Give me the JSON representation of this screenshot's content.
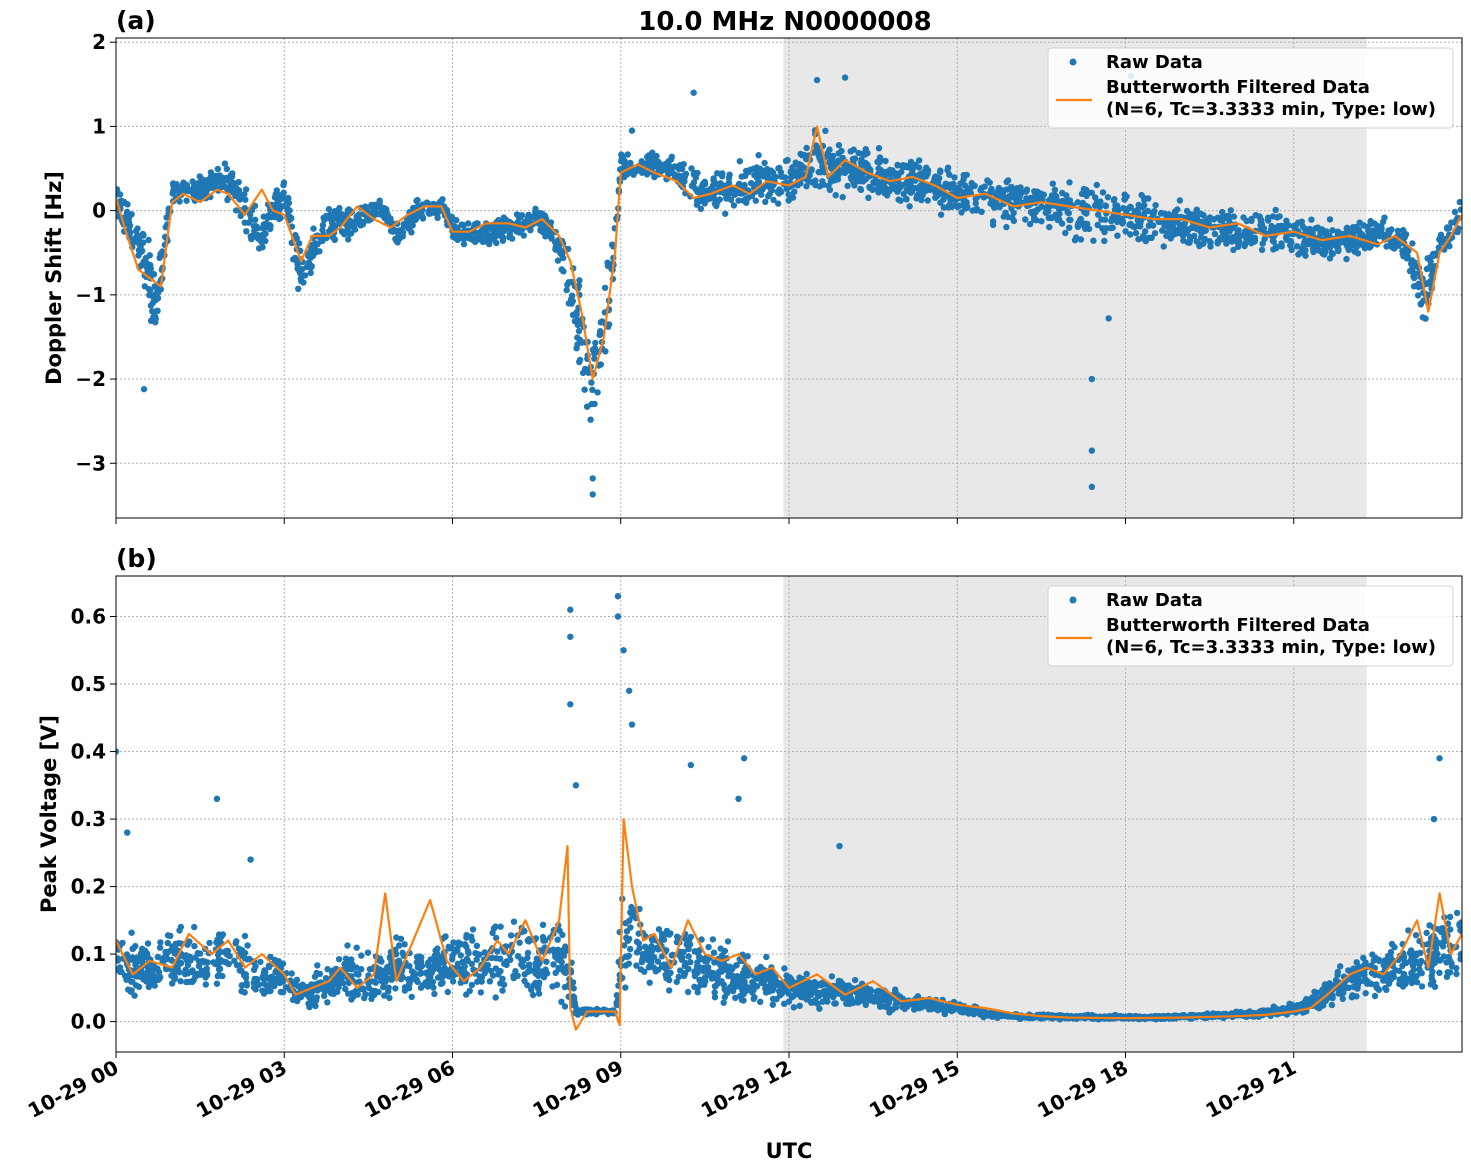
{
  "figure": {
    "title": "10.0 MHz N0000008",
    "xlabel": "UTC"
  },
  "colors": {
    "raw": "#1f77b4",
    "filtered": "#ff7f0e",
    "night_shade": "#e8e8e8",
    "grid": "#b0b0b0"
  },
  "chart_data": [
    {
      "type": "scatter",
      "panel_label": "(a)",
      "ylabel": "Doppler Shift [Hz]",
      "xlim_hours": [
        0,
        24
      ],
      "ylim": [
        -3.65,
        2.05
      ],
      "yticks": [
        -3,
        -2,
        -1,
        0,
        1,
        2
      ],
      "ytick_labels": [
        "−3",
        "−2",
        "−1",
        "0",
        "1",
        "2"
      ],
      "xticks": [
        0,
        3,
        6,
        9,
        12,
        15,
        18,
        21
      ],
      "xtick_labels": [
        "10-29 00",
        "10-29 03",
        "10-29 06",
        "10-29 09",
        "10-29 12",
        "10-29 15",
        "10-29 18",
        "10-29 21"
      ],
      "grid": true,
      "legend_position": "top-right",
      "legend": [
        "Raw Data",
        "Butterworth Filtered Data",
        "(N=6, Tc=3.3333 min, Type: low)"
      ],
      "shaded_interval_hours": [
        11.9,
        22.3
      ],
      "series": [
        {
          "name": "Raw Data",
          "style": "points",
          "x": [
            0,
            0.5,
            0.7,
            1.0,
            1.5,
            2.0,
            2.6,
            3.0,
            3.3,
            3.7,
            4.2,
            4.7,
            5.0,
            5.4,
            5.8,
            6.1,
            6.5,
            7.0,
            7.6,
            8.0,
            8.3,
            8.5,
            8.8,
            9.0,
            9.5,
            10.0,
            10.5,
            11.0,
            11.5,
            12.0,
            12.5,
            13.0,
            13.5,
            14.0,
            14.5,
            15.0,
            15.5,
            16.0,
            16.5,
            17.0,
            17.5,
            18.0,
            18.5,
            19.0,
            19.5,
            20.0,
            20.5,
            21.0,
            21.5,
            22.0,
            22.5,
            23.0,
            23.3,
            23.6,
            24.0
          ],
          "y": [
            0.15,
            -0.5,
            -1.2,
            0.2,
            0.25,
            0.35,
            -0.3,
            0.25,
            -0.8,
            -0.2,
            -0.15,
            0.05,
            -0.3,
            0.0,
            0.05,
            -0.3,
            -0.3,
            -0.2,
            -0.1,
            -0.6,
            -1.6,
            -2.1,
            -1.0,
            0.5,
            0.55,
            0.45,
            0.2,
            0.25,
            0.35,
            0.3,
            0.6,
            0.5,
            0.45,
            0.35,
            0.3,
            0.2,
            0.1,
            0.15,
            0.05,
            0.0,
            -0.05,
            -0.05,
            -0.1,
            -0.15,
            -0.2,
            -0.25,
            -0.2,
            -0.3,
            -0.35,
            -0.35,
            -0.25,
            -0.4,
            -1.1,
            -0.4,
            -0.05
          ],
          "spread": [
            0.25,
            0.5,
            0.6,
            0.25,
            0.25,
            0.3,
            0.35,
            0.3,
            0.45,
            0.3,
            0.25,
            0.15,
            0.2,
            0.2,
            0.15,
            0.2,
            0.2,
            0.2,
            0.2,
            0.4,
            0.8,
            0.9,
            0.6,
            0.25,
            0.2,
            0.25,
            0.3,
            0.35,
            0.4,
            0.35,
            0.45,
            0.4,
            0.4,
            0.4,
            0.35,
            0.35,
            0.35,
            0.4,
            0.4,
            0.45,
            0.45,
            0.4,
            0.4,
            0.35,
            0.35,
            0.3,
            0.3,
            0.3,
            0.3,
            0.3,
            0.3,
            0.3,
            0.45,
            0.3,
            0.3
          ],
          "outliers": [
            [
              17.4,
              -2.0
            ],
            [
              17.4,
              -2.85
            ],
            [
              17.4,
              -3.28
            ],
            [
              17.7,
              -1.28
            ],
            [
              8.5,
              -3.37
            ],
            [
              8.5,
              -3.18
            ],
            [
              0.5,
              -2.12
            ],
            [
              12.5,
              1.55
            ],
            [
              13.0,
              1.58
            ],
            [
              18.1,
              1.6
            ],
            [
              10.3,
              1.4
            ],
            [
              9.2,
              0.95
            ]
          ]
        },
        {
          "name": "Butterworth Filtered Data",
          "style": "line",
          "x": [
            0,
            0.2,
            0.4,
            0.6,
            0.8,
            1.0,
            1.2,
            1.5,
            1.8,
            2.0,
            2.3,
            2.6,
            2.8,
            3.0,
            3.3,
            3.5,
            3.8,
            4.0,
            4.3,
            4.6,
            4.9,
            5.2,
            5.5,
            5.8,
            6.0,
            6.3,
            6.6,
            7.0,
            7.3,
            7.6,
            7.9,
            8.1,
            8.3,
            8.5,
            8.7,
            8.9,
            9.0,
            9.3,
            9.6,
            10.0,
            10.3,
            10.6,
            11.0,
            11.3,
            11.6,
            12.0,
            12.3,
            12.5,
            12.7,
            13.0,
            13.4,
            13.8,
            14.2,
            14.6,
            15.0,
            15.5,
            16.0,
            16.5,
            17.0,
            17.5,
            18.0,
            18.5,
            19.0,
            19.5,
            20.0,
            20.5,
            21.0,
            21.5,
            22.0,
            22.5,
            22.8,
            23.0,
            23.2,
            23.4,
            23.6,
            23.8,
            24.0
          ],
          "y": [
            0.15,
            -0.3,
            -0.7,
            -0.8,
            -0.9,
            0.1,
            0.2,
            0.1,
            0.25,
            0.2,
            -0.05,
            0.25,
            0.0,
            -0.05,
            -0.6,
            -0.3,
            -0.3,
            -0.2,
            0.05,
            -0.1,
            -0.2,
            -0.05,
            0.05,
            0.05,
            -0.25,
            -0.25,
            -0.15,
            -0.15,
            -0.2,
            -0.1,
            -0.3,
            -0.6,
            -1.2,
            -2.0,
            -1.5,
            -0.5,
            0.45,
            0.55,
            0.45,
            0.35,
            0.15,
            0.2,
            0.3,
            0.2,
            0.35,
            0.3,
            0.4,
            1.0,
            0.4,
            0.6,
            0.45,
            0.35,
            0.4,
            0.3,
            0.15,
            0.2,
            0.05,
            0.1,
            0.05,
            0.0,
            -0.05,
            -0.1,
            -0.1,
            -0.2,
            -0.15,
            -0.3,
            -0.25,
            -0.35,
            -0.3,
            -0.4,
            -0.3,
            -0.4,
            -0.5,
            -1.2,
            -0.5,
            -0.3,
            -0.05
          ]
        }
      ]
    },
    {
      "type": "scatter",
      "panel_label": "(b)",
      "ylabel": "Peak Voltage [V]",
      "xlim_hours": [
        0,
        24
      ],
      "ylim": [
        -0.045,
        0.66
      ],
      "yticks": [
        0.0,
        0.1,
        0.2,
        0.3,
        0.4,
        0.5,
        0.6
      ],
      "ytick_labels": [
        "0.0",
        "0.1",
        "0.2",
        "0.3",
        "0.4",
        "0.5",
        "0.6"
      ],
      "xticks": [
        0,
        3,
        6,
        9,
        12,
        15,
        18,
        21
      ],
      "xtick_labels": [
        "10-29 00",
        "10-29 03",
        "10-29 06",
        "10-29 09",
        "10-29 12",
        "10-29 15",
        "10-29 18",
        "10-29 21"
      ],
      "grid": true,
      "legend_position": "top-right",
      "legend": [
        "Raw Data",
        "Butterworth Filtered Data",
        "(N=6, Tc=3.3333 min, Type: low)"
      ],
      "shaded_interval_hours": [
        11.9,
        22.3
      ],
      "series": [
        {
          "name": "Raw Data",
          "style": "points",
          "x": [
            0,
            0.5,
            1.0,
            1.5,
            2.0,
            2.5,
            3.0,
            3.3,
            3.7,
            4.0,
            4.5,
            5.0,
            5.5,
            6.0,
            6.5,
            7.0,
            7.5,
            7.9,
            8.1,
            8.2,
            8.5,
            8.9,
            9.0,
            9.2,
            9.5,
            10.0,
            10.5,
            11.0,
            11.5,
            12.0,
            12.5,
            13.0,
            13.5,
            14.0,
            14.5,
            15.0,
            15.5,
            16.0,
            17.0,
            18.0,
            19.0,
            20.0,
            20.5,
            21.0,
            21.5,
            22.0,
            22.5,
            23.0,
            23.5,
            24.0
          ],
          "y": [
            0.09,
            0.08,
            0.09,
            0.085,
            0.1,
            0.07,
            0.06,
            0.04,
            0.05,
            0.07,
            0.06,
            0.08,
            0.07,
            0.09,
            0.08,
            0.1,
            0.09,
            0.1,
            0.06,
            0.015,
            0.015,
            0.015,
            0.1,
            0.15,
            0.1,
            0.1,
            0.08,
            0.07,
            0.06,
            0.05,
            0.045,
            0.045,
            0.035,
            0.03,
            0.025,
            0.02,
            0.012,
            0.008,
            0.007,
            0.006,
            0.007,
            0.01,
            0.013,
            0.02,
            0.035,
            0.06,
            0.075,
            0.085,
            0.1,
            0.12
          ],
          "spread": [
            0.06,
            0.05,
            0.06,
            0.06,
            0.06,
            0.05,
            0.04,
            0.03,
            0.04,
            0.05,
            0.06,
            0.06,
            0.05,
            0.06,
            0.07,
            0.08,
            0.08,
            0.08,
            0.07,
            0.005,
            0.005,
            0.005,
            0.1,
            0.08,
            0.06,
            0.06,
            0.06,
            0.06,
            0.04,
            0.035,
            0.03,
            0.03,
            0.02,
            0.02,
            0.015,
            0.012,
            0.008,
            0.005,
            0.004,
            0.004,
            0.004,
            0.006,
            0.008,
            0.012,
            0.025,
            0.04,
            0.05,
            0.06,
            0.07,
            0.08
          ],
          "outliers": [
            [
              8.1,
              0.61
            ],
            [
              8.1,
              0.57
            ],
            [
              8.1,
              0.47
            ],
            [
              8.2,
              0.35
            ],
            [
              8.95,
              0.63
            ],
            [
              8.95,
              0.6
            ],
            [
              9.05,
              0.55
            ],
            [
              9.15,
              0.49
            ],
            [
              9.2,
              0.44
            ],
            [
              0.0,
              0.4
            ],
            [
              1.8,
              0.33
            ],
            [
              11.2,
              0.39
            ],
            [
              11.1,
              0.33
            ],
            [
              10.25,
              0.38
            ],
            [
              12.9,
              0.26
            ],
            [
              23.6,
              0.39
            ],
            [
              23.5,
              0.3
            ],
            [
              0.2,
              0.28
            ],
            [
              2.4,
              0.24
            ]
          ]
        },
        {
          "name": "Butterworth Filtered Data",
          "style": "line",
          "x": [
            0,
            0.3,
            0.6,
            1.0,
            1.3,
            1.7,
            2.0,
            2.3,
            2.6,
            3.0,
            3.2,
            3.5,
            3.8,
            4.0,
            4.3,
            4.6,
            4.8,
            5.0,
            5.3,
            5.6,
            5.9,
            6.2,
            6.5,
            6.8,
            7.0,
            7.3,
            7.6,
            7.9,
            8.05,
            8.1,
            8.2,
            8.4,
            8.6,
            8.9,
            8.98,
            9.05,
            9.2,
            9.4,
            9.6,
            9.9,
            10.2,
            10.5,
            10.8,
            11.1,
            11.4,
            11.7,
            12.0,
            12.5,
            13.0,
            13.5,
            14.0,
            14.5,
            15.0,
            15.5,
            16.0,
            16.5,
            17.0,
            18.0,
            19.0,
            20.0,
            20.5,
            21.0,
            21.3,
            21.6,
            22.0,
            22.3,
            22.6,
            22.9,
            23.2,
            23.4,
            23.6,
            23.8,
            24.0
          ],
          "y": [
            0.12,
            0.07,
            0.09,
            0.08,
            0.13,
            0.1,
            0.12,
            0.08,
            0.1,
            0.07,
            0.04,
            0.05,
            0.06,
            0.08,
            0.05,
            0.07,
            0.19,
            0.06,
            0.12,
            0.18,
            0.09,
            0.06,
            0.08,
            0.12,
            0.1,
            0.15,
            0.09,
            0.15,
            0.26,
            0.02,
            -0.012,
            0.015,
            0.015,
            0.015,
            -0.005,
            0.3,
            0.2,
            0.12,
            0.13,
            0.08,
            0.15,
            0.1,
            0.09,
            0.1,
            0.07,
            0.08,
            0.05,
            0.07,
            0.04,
            0.06,
            0.03,
            0.035,
            0.025,
            0.02,
            0.012,
            0.008,
            0.006,
            0.005,
            0.006,
            0.008,
            0.01,
            0.015,
            0.02,
            0.04,
            0.07,
            0.08,
            0.07,
            0.1,
            0.15,
            0.08,
            0.19,
            0.1,
            0.13
          ]
        }
      ]
    }
  ]
}
